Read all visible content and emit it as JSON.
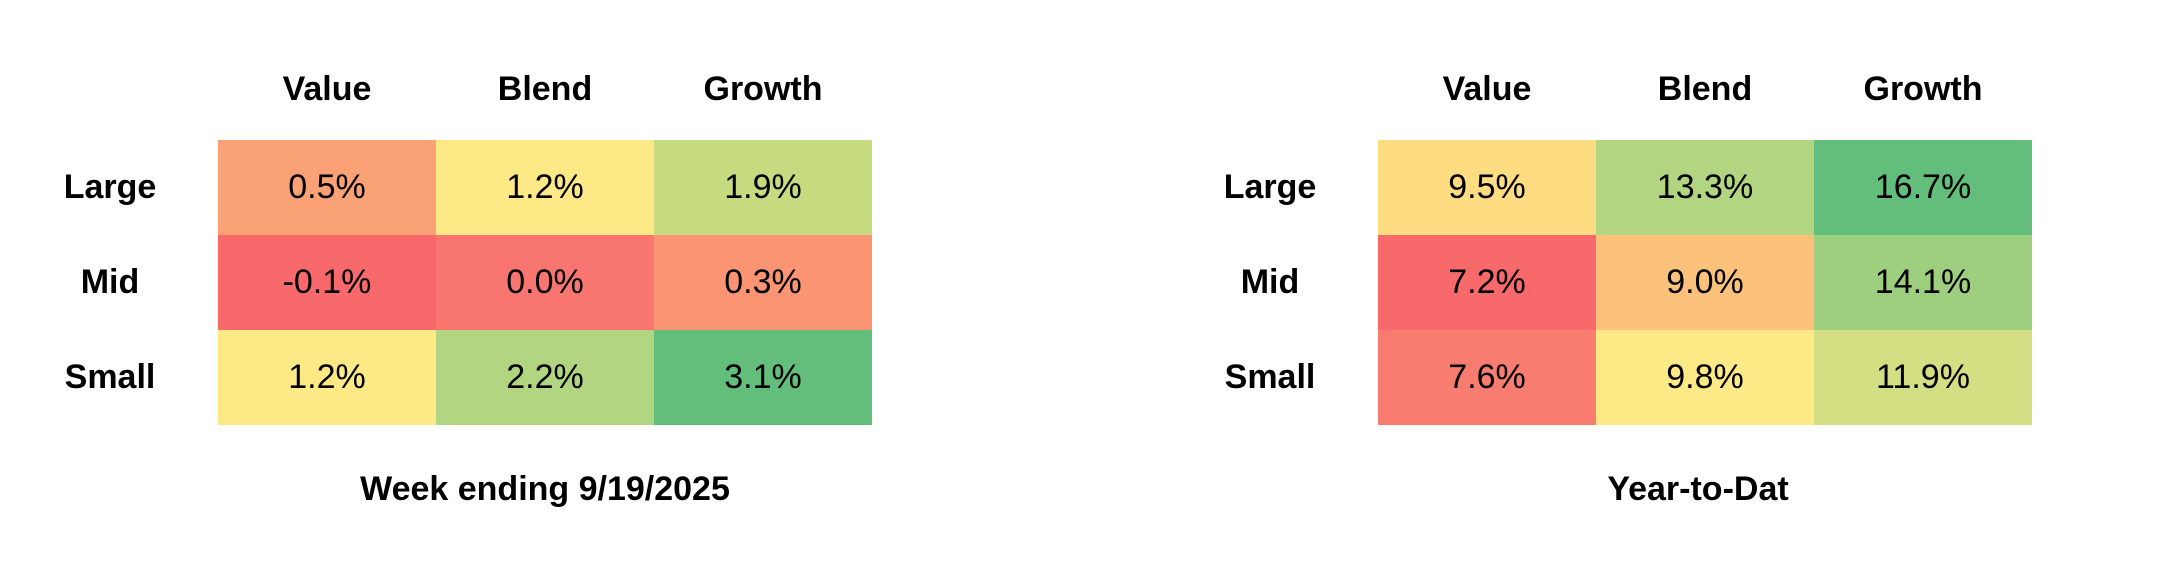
{
  "chart_data": [
    {
      "type": "heatmap",
      "title": "Week ending 9/19/2025",
      "columns": [
        "Value",
        "Blend",
        "Growth"
      ],
      "rows": [
        "Large",
        "Mid",
        "Small"
      ],
      "values": [
        [
          0.5,
          1.2,
          1.9
        ],
        [
          -0.1,
          0.0,
          0.3
        ],
        [
          1.2,
          2.2,
          3.1
        ]
      ],
      "labels": [
        [
          "0.5%",
          "1.2%",
          "1.9%"
        ],
        [
          "-0.1%",
          "0.0%",
          "0.3%"
        ],
        [
          "1.2%",
          "2.2%",
          "3.1%"
        ]
      ],
      "colors": [
        [
          "#FAA176",
          "#FDE985",
          "#C6DB80"
        ],
        [
          "#F8696B",
          "#F9756F",
          "#FB9473"
        ],
        [
          "#FDE985",
          "#B1D580",
          "#63BE7B"
        ]
      ]
    },
    {
      "type": "heatmap",
      "title": "Year-to-Dat",
      "columns": [
        "Value",
        "Blend",
        "Growth"
      ],
      "rows": [
        "Large",
        "Mid",
        "Small"
      ],
      "values": [
        [
          9.5,
          13.3,
          16.7
        ],
        [
          7.2,
          9.0,
          14.1
        ],
        [
          7.6,
          9.8,
          11.9
        ]
      ],
      "labels": [
        [
          "9.5%",
          "13.3%",
          "16.7%"
        ],
        [
          "7.2%",
          "9.0%",
          "14.1%"
        ],
        [
          "7.6%",
          "9.8%",
          "11.9%"
        ]
      ],
      "colors": [
        [
          "#FEDC81",
          "#B1D580",
          "#63BE7B"
        ],
        [
          "#F8696B",
          "#FCC27C",
          "#9DCF7F"
        ],
        [
          "#F97C70",
          "#FDE985",
          "#D3DF82"
        ]
      ]
    }
  ]
}
